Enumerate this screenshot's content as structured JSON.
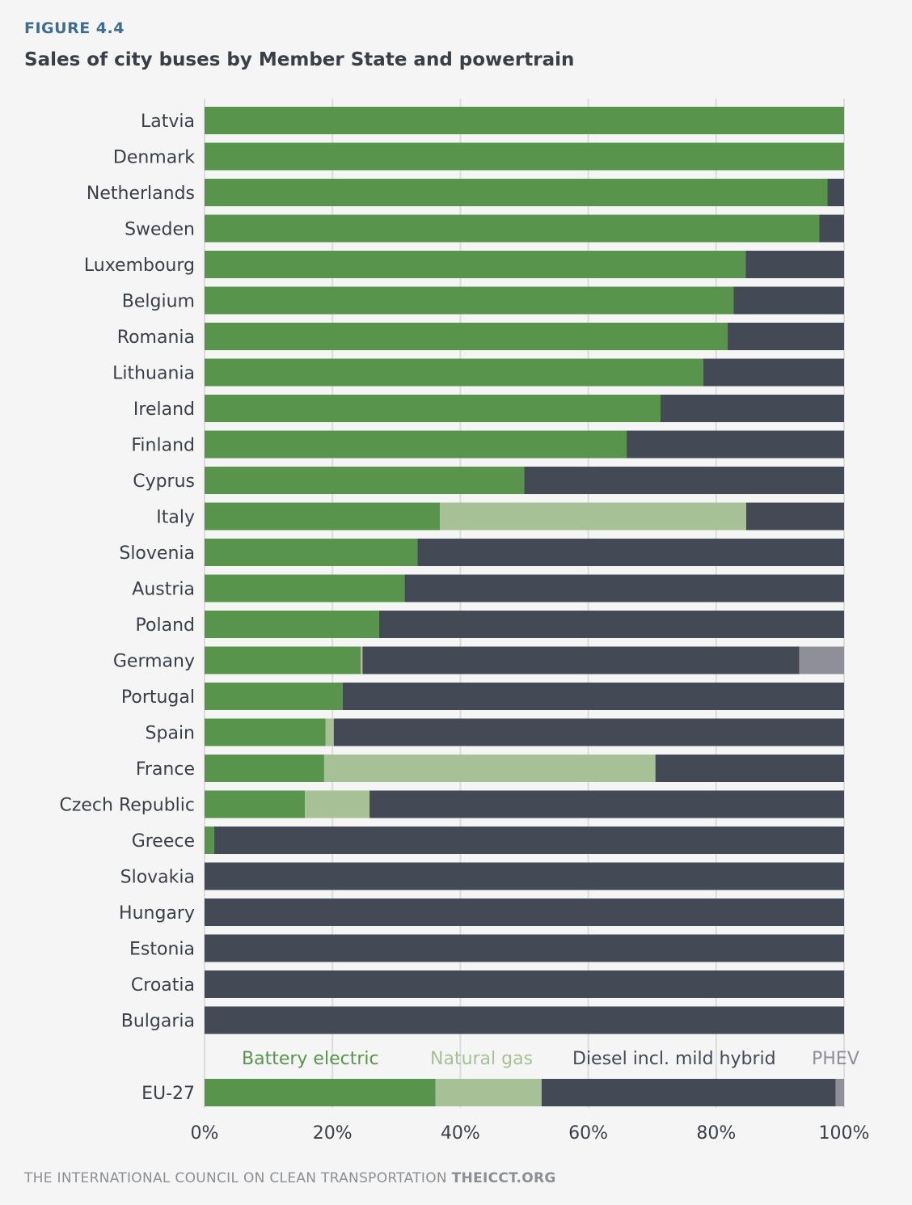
{
  "figure_label": "FIGURE 4.4",
  "title": "Sales of city buses by Member State and powertrain",
  "footer": {
    "org": "THE INTERNATIONAL COUNCIL ON CLEAN TRANSPORTATION",
    "site": "THEICCT.ORG"
  },
  "colors": {
    "battery_electric": "#58944c",
    "natural_gas": "#a7c096",
    "diesel": "#434a55",
    "phev": "#8f8f99"
  },
  "chart_data": {
    "type": "bar",
    "orientation": "horizontal",
    "stacked": true,
    "xlim": [
      0,
      100
    ],
    "x_ticks": [
      "0%",
      "20%",
      "40%",
      "60%",
      "80%",
      "100%"
    ],
    "gridlines": true,
    "legend_placement": "bottom, above EU-27 row",
    "categories": [
      "Latvia",
      "Denmark",
      "Netherlands",
      "Sweden",
      "Luxembourg",
      "Belgium",
      "Romania",
      "Lithuania",
      "Ireland",
      "Finland",
      "Cyprus",
      "Italy",
      "Slovenia",
      "Austria",
      "Poland",
      "Germany",
      "Portugal",
      "Spain",
      "France",
      "Czech Republic",
      "Greece",
      "Slovakia",
      "Hungary",
      "Estonia",
      "Croatia",
      "Bulgaria"
    ],
    "series": [
      {
        "name": "Battery electric",
        "values": [
          100,
          100,
          97.4,
          96.1,
          84.6,
          82.7,
          81.8,
          78.0,
          71.3,
          66.0,
          50.0,
          36.8,
          33.3,
          31.3,
          27.3,
          24.4,
          21.6,
          18.9,
          18.7,
          15.7,
          1.5,
          0,
          0,
          0,
          0,
          0
        ]
      },
      {
        "name": "Natural gas",
        "values": [
          0,
          0,
          0,
          0,
          0,
          0,
          0,
          0,
          0,
          0,
          0,
          47.9,
          0,
          0,
          0,
          0.3,
          0,
          1.3,
          51.8,
          10.1,
          0,
          0,
          0,
          0,
          0,
          0
        ]
      },
      {
        "name": "Diesel incl. mild hybrid",
        "values": [
          0,
          0,
          2.6,
          3.9,
          15.4,
          17.3,
          18.2,
          22.0,
          28.7,
          34.0,
          50.0,
          15.3,
          66.7,
          68.7,
          72.7,
          68.3,
          78.4,
          79.8,
          29.5,
          74.2,
          98.5,
          100,
          100,
          100,
          100,
          100
        ]
      },
      {
        "name": "PHEV",
        "values": [
          0,
          0,
          0,
          0,
          0,
          0,
          0,
          0,
          0,
          0,
          0,
          0,
          0,
          0,
          0,
          7.0,
          0,
          0,
          0,
          0,
          0,
          0,
          0,
          0,
          0,
          0
        ]
      }
    ],
    "total_row": {
      "category": "EU-27",
      "values": [
        36.1,
        16.6,
        46.0,
        1.3
      ]
    }
  }
}
